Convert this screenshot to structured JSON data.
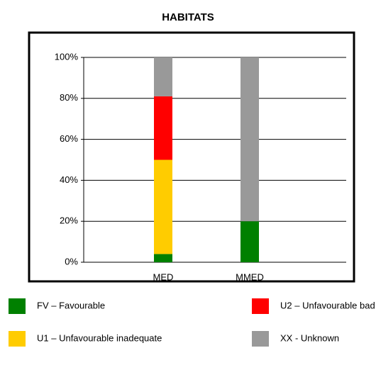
{
  "chart_data": {
    "type": "stacked_bar",
    "title": "HABITATS",
    "categories": [
      "MED",
      "MMED"
    ],
    "series": [
      {
        "name": "FV – Favourable",
        "color": "#008000",
        "values": [
          4,
          20
        ]
      },
      {
        "name": "U1 – Unfavourable inadequate",
        "color": "#ffcc00",
        "values": [
          46,
          0
        ]
      },
      {
        "name": "U2 – Unfavourable bad",
        "color": "#ff0000",
        "values": [
          31,
          0
        ]
      },
      {
        "name": "XX - Unknown",
        "color": "#999999",
        "values": [
          19,
          80
        ]
      }
    ],
    "ylim": [
      0,
      100
    ],
    "yticks": [
      {
        "value": 0,
        "label": "0%"
      },
      {
        "value": 20,
        "label": "20%"
      },
      {
        "value": 40,
        "label": "40%"
      },
      {
        "value": 60,
        "label": "60%"
      },
      {
        "value": 80,
        "label": "80%"
      },
      {
        "value": 100,
        "label": "100%"
      }
    ],
    "grid": true
  }
}
